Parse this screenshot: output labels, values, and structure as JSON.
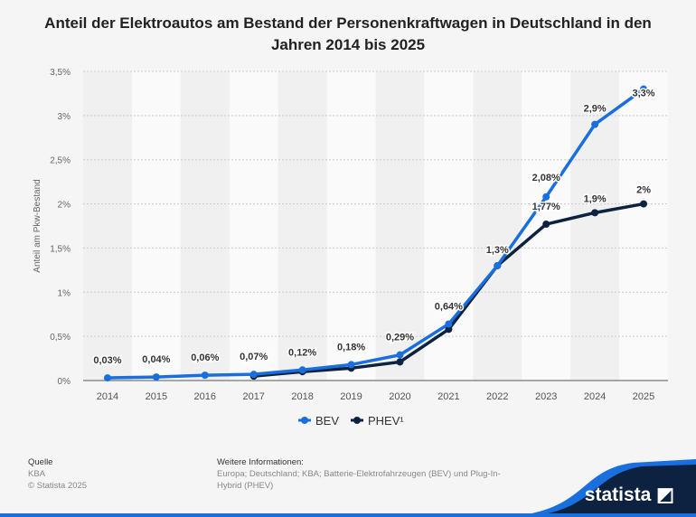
{
  "chart_data": {
    "type": "line",
    "title": "Anteil der Elektroautos am Bestand der Personenkraftwagen in Deutschland in den Jahren 2014 bis 2025",
    "ylabel": "Anteil am Pkw-Bestand",
    "xlabel": "",
    "categories": [
      "2014",
      "2015",
      "2016",
      "2017",
      "2018",
      "2019",
      "2020",
      "2021",
      "2022",
      "2023",
      "2024",
      "2025"
    ],
    "ylim": [
      0,
      3.5
    ],
    "yticks": [
      "0%",
      "0,5%",
      "1%",
      "1,5%",
      "2%",
      "2,5%",
      "3%",
      "3,5%"
    ],
    "grid": true,
    "legend_position": "bottom",
    "series": [
      {
        "name": "BEV",
        "color": "#1a6fdf",
        "values": [
          0.03,
          0.04,
          0.06,
          0.07,
          0.12,
          0.18,
          0.29,
          0.64,
          1.3,
          2.08,
          2.9,
          3.3
        ],
        "labels": [
          "0,03%",
          "0,04%",
          "0,06%",
          "0,07%",
          "0,12%",
          "0,18%",
          "0,29%",
          "0,64%",
          "1,3%",
          "2,08%",
          "2,9%",
          "3,3%"
        ]
      },
      {
        "name": "PHEV¹",
        "color": "#0d2240",
        "values": [
          null,
          null,
          null,
          0.05,
          0.1,
          0.14,
          0.21,
          0.58,
          1.3,
          1.77,
          1.9,
          2.0
        ],
        "labels": [
          null,
          null,
          null,
          null,
          null,
          null,
          null,
          null,
          null,
          "1,77%",
          "1,9%",
          "2%"
        ]
      }
    ]
  },
  "footer": {
    "source_heading": "Quelle",
    "source": "KBA",
    "copyright": "© Statista 2025",
    "info_heading": "Weitere Informationen:",
    "info": "Europa; Deutschland; KBA; Batterie-Elektrofahrzeugen (BEV) und Plug-In-Hybrid (PHEV)",
    "logo": "statista"
  }
}
